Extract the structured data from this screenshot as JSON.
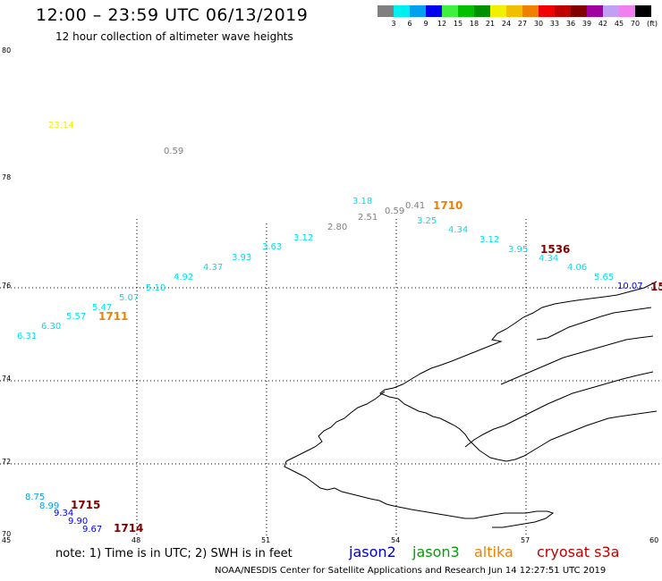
{
  "header": {
    "title": "12:00 – 23:59 UTC 06/13/2019",
    "subtitle": "12 hour collection of altimeter wave heights"
  },
  "legend": {
    "colors": [
      "#808080",
      "#00f0f0",
      "#00a0f0",
      "#0000f0",
      "#40f040",
      "#00c000",
      "#009000",
      "#f0f000",
      "#f0c000",
      "#f08000",
      "#f00000",
      "#c00000",
      "#800000",
      "#a000a0",
      "#c0a0f0",
      "#f080f0",
      "#000000"
    ],
    "labels": [
      "3",
      "6",
      "9",
      "12",
      "15",
      "18",
      "21",
      "24",
      "27",
      "30",
      "33",
      "36",
      "39",
      "42",
      "45",
      "70"
    ],
    "unit": "(ft)"
  },
  "axes": {
    "x_ticks": [
      "45",
      "48",
      "51",
      "54",
      "57",
      "60"
    ],
    "y_ticks": [
      "80",
      "78",
      "76",
      "74",
      "72",
      "70"
    ]
  },
  "swh_points": [
    {
      "t": "23.14",
      "c": "#f0f000"
    },
    {
      "t": "0.59",
      "c": "#808080"
    },
    {
      "t": "3.18",
      "c": "#00e0f0"
    },
    {
      "t": "2.51",
      "c": "#808080"
    },
    {
      "t": "0.59",
      "c": "#808080"
    },
    {
      "t": "0.41",
      "c": "#808080"
    },
    {
      "t": "3.25",
      "c": "#00e0f0"
    },
    {
      "t": "2.80",
      "c": "#808080"
    },
    {
      "t": "3.12",
      "c": "#00e0f0"
    },
    {
      "t": "4.34",
      "c": "#00e0f0"
    },
    {
      "t": "3.12",
      "c": "#00e0f0"
    },
    {
      "t": "3.63",
      "c": "#00e0f0"
    },
    {
      "t": "3.95",
      "c": "#00e0f0"
    },
    {
      "t": "3.93",
      "c": "#00e0f0"
    },
    {
      "t": "4.34",
      "c": "#00e0f0"
    },
    {
      "t": "4.37",
      "c": "#00e0f0"
    },
    {
      "t": "4.06",
      "c": "#00e0f0"
    },
    {
      "t": "4.92",
      "c": "#00e0f0"
    },
    {
      "t": "5.10",
      "c": "#00e0f0"
    },
    {
      "t": "5.65",
      "c": "#00e0f0"
    },
    {
      "t": "5.07",
      "c": "#00e0f0"
    },
    {
      "t": "5.47",
      "c": "#00e0f0"
    },
    {
      "t": "5.57",
      "c": "#00e0f0"
    },
    {
      "t": "6.30",
      "c": "#00e0f0"
    },
    {
      "t": "6.31",
      "c": "#00e0f0"
    },
    {
      "t": "8.75",
      "c": "#00a0f0"
    },
    {
      "t": "8.99",
      "c": "#00a0f0"
    },
    {
      "t": "9.34",
      "c": "#0000f0"
    },
    {
      "t": "9.90",
      "c": "#0000f0"
    },
    {
      "t": "9.67",
      "c": "#0000f0"
    },
    {
      "t": "10.07",
      "c": "#0000f0"
    }
  ],
  "times": [
    {
      "t": "1710",
      "c": "#f08000"
    },
    {
      "t": "1536",
      "c": "#800000"
    },
    {
      "t": "1711",
      "c": "#f08000"
    },
    {
      "t": "1715",
      "c": "#800000"
    },
    {
      "t": "1714",
      "c": "#800000"
    },
    {
      "t": "15",
      "c": "#800000"
    }
  ],
  "note": "note:  1) Time is in UTC; 2) SWH is in feet",
  "satellites": [
    {
      "name": "jason2",
      "color": "#0000d0"
    },
    {
      "name": "jason3",
      "color": "#00a000"
    },
    {
      "name": "altika",
      "color": "#f08000"
    },
    {
      "name": "cryosat s3a",
      "color": "#c00000"
    }
  ],
  "footer": "NOAA/NESDIS Center for Satellite Applications and Research    Jun 14 12:27:51 UTC 2019"
}
